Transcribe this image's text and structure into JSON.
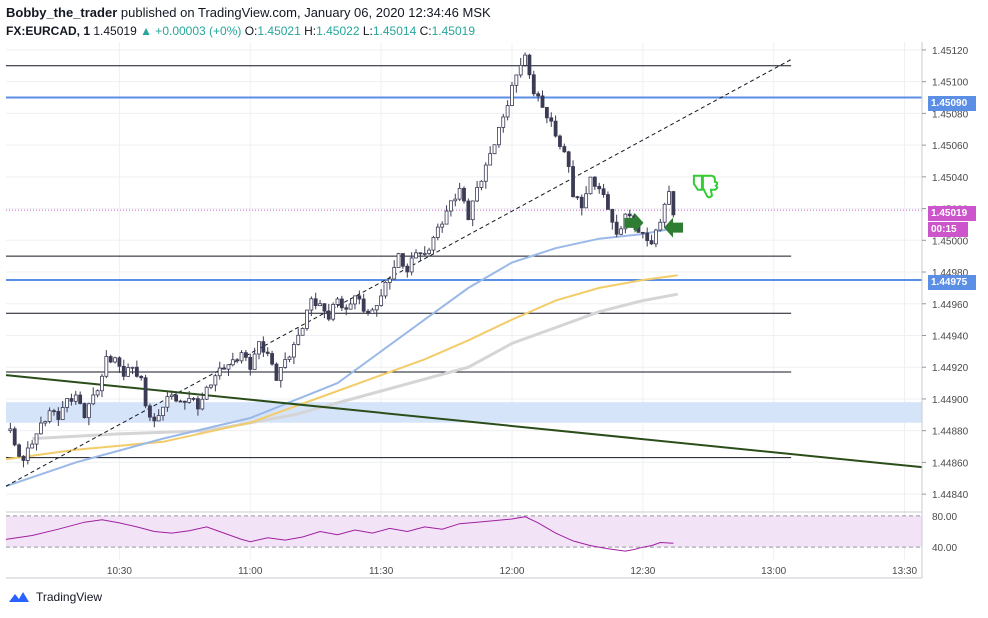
{
  "header": {
    "author": "Bobby_the_trader",
    "published": "published on TradingView.com, January 06, 2020 12:34:46 MSK",
    "symbol": "FX:EURCAD, 1",
    "last": "1.45019",
    "change": "▲ +0.00003 (+0%)",
    "o_label": "O:",
    "o_value": "1.45021",
    "h_label": "H:",
    "h_value": "1.45022",
    "l_label": "L:",
    "l_value": "1.45014",
    "c_label": "C:",
    "c_value": "1.45019"
  },
  "footer": {
    "brand": "TradingView"
  },
  "price_tags": {
    "level_top": "1.45090",
    "last_price": "1.45019",
    "countdown": "00:15",
    "level_bottom": "1.44975"
  },
  "colors": {
    "up": "#26a69a",
    "candle": "#3b3b55",
    "level_blue": "#5b8fe6",
    "ma_blue": "#9ab8e8",
    "ma_orange": "#f3cc6a",
    "ma_gray": "#d5d5d5",
    "trendline": "#2b4d1a",
    "rsi": "#a020a0",
    "last_tag": "#cc55cc",
    "arrow_green": "#2e7d32",
    "thumb": "#33cc33"
  },
  "chart_data": {
    "type": "candlestick",
    "ylim": [
      1.4483,
      1.45125
    ],
    "y_ticks": [
      "1.45120",
      "1.45100",
      "1.45080",
      "1.45060",
      "1.45040",
      "1.45020",
      "1.45000",
      "1.44980",
      "1.44960",
      "1.44940",
      "1.44920",
      "1.44900",
      "1.44880",
      "1.44860",
      "1.44840"
    ],
    "x_ticks": [
      {
        "label": "10:30",
        "minute": 30
      },
      {
        "label": "11:00",
        "minute": 60
      },
      {
        "label": "11:30",
        "minute": 90
      },
      {
        "label": "12:00",
        "minute": 120
      },
      {
        "label": "12:30",
        "minute": 150
      },
      {
        "label": "13:00",
        "minute": 180
      },
      {
        "label": "13:30",
        "minute": 210
      }
    ],
    "x_range_minutes": [
      4,
      214
    ],
    "horizontal_levels": [
      1.4511,
      1.4499,
      1.44954,
      1.44917,
      1.44863
    ],
    "blue_levels": [
      1.4509,
      1.44975
    ],
    "last_price": 1.45019,
    "zone": [
      1.44885,
      1.44898
    ],
    "close_path": [
      [
        5,
        1.4488
      ],
      [
        6,
        1.44868
      ],
      [
        8,
        1.44862
      ],
      [
        10,
        1.44875
      ],
      [
        12,
        1.44885
      ],
      [
        14,
        1.44893
      ],
      [
        16,
        1.44888
      ],
      [
        18,
        1.44897
      ],
      [
        20,
        1.449
      ],
      [
        22,
        1.4489
      ],
      [
        24,
        1.44903
      ],
      [
        26,
        1.44915
      ],
      [
        27,
        1.44928
      ],
      [
        29,
        1.44925
      ],
      [
        31,
        1.44915
      ],
      [
        33,
        1.44918
      ],
      [
        35,
        1.4491
      ],
      [
        36,
        1.44895
      ],
      [
        38,
        1.44885
      ],
      [
        40,
        1.44898
      ],
      [
        42,
        1.44905
      ],
      [
        44,
        1.44897
      ],
      [
        46,
        1.449
      ],
      [
        48,
        1.44893
      ],
      [
        50,
        1.44904
      ],
      [
        52,
        1.44915
      ],
      [
        54,
        1.44922
      ],
      [
        56,
        1.44925
      ],
      [
        58,
        1.4493
      ],
      [
        60,
        1.4492
      ],
      [
        62,
        1.44933
      ],
      [
        64,
        1.44926
      ],
      [
        66,
        1.44913
      ],
      [
        68,
        1.44925
      ],
      [
        70,
        1.44935
      ],
      [
        72,
        1.44948
      ],
      [
        74,
        1.44963
      ],
      [
        76,
        1.44957
      ],
      [
        78,
        1.4495
      ],
      [
        80,
        1.44962
      ],
      [
        82,
        1.44955
      ],
      [
        84,
        1.44968
      ],
      [
        86,
        1.44958
      ],
      [
        88,
        1.44955
      ],
      [
        90,
        1.44965
      ],
      [
        92,
        1.44975
      ],
      [
        94,
        1.44988
      ],
      [
        96,
        1.4498
      ],
      [
        98,
        1.44995
      ],
      [
        100,
        1.44992
      ],
      [
        102,
        1.45003
      ],
      [
        104,
        1.45012
      ],
      [
        106,
        1.45022
      ],
      [
        108,
        1.4503
      ],
      [
        110,
        1.45014
      ],
      [
        112,
        1.45033
      ],
      [
        114,
        1.45048
      ],
      [
        116,
        1.45064
      ],
      [
        118,
        1.45078
      ],
      [
        120,
        1.45095
      ],
      [
        122,
        1.4511
      ],
      [
        123,
        1.45113
      ],
      [
        124,
        1.45103
      ],
      [
        125,
        1.45093
      ],
      [
        127,
        1.45085
      ],
      [
        129,
        1.45075
      ],
      [
        131,
        1.45062
      ],
      [
        133,
        1.45048
      ],
      [
        134,
        1.45028
      ],
      [
        136,
        1.4502
      ],
      [
        138,
        1.45036
      ],
      [
        140,
        1.45032
      ],
      [
        142,
        1.45022
      ],
      [
        144,
        1.45004
      ],
      [
        146,
        1.45018
      ],
      [
        148,
        1.45012
      ],
      [
        149,
        1.45004
      ],
      [
        151,
        1.45
      ],
      [
        152,
        1.44995
      ],
      [
        154,
        1.45012
      ],
      [
        156,
        1.4503
      ],
      [
        157,
        1.45019
      ]
    ],
    "ma_blue": [
      [
        4,
        1.44845
      ],
      [
        20,
        1.4486
      ],
      [
        40,
        1.44875
      ],
      [
        60,
        1.44888
      ],
      [
        80,
        1.4491
      ],
      [
        100,
        1.4495
      ],
      [
        110,
        1.4497
      ],
      [
        120,
        1.44986
      ],
      [
        130,
        1.44995
      ],
      [
        140,
        1.45001
      ],
      [
        150,
        1.45004
      ],
      [
        158,
        1.45008
      ]
    ],
    "ma_orange": [
      [
        4,
        1.44862
      ],
      [
        20,
        1.44868
      ],
      [
        40,
        1.44873
      ],
      [
        60,
        1.44885
      ],
      [
        80,
        1.44905
      ],
      [
        100,
        1.44925
      ],
      [
        110,
        1.44937
      ],
      [
        120,
        1.4495
      ],
      [
        130,
        1.44962
      ],
      [
        140,
        1.4497
      ],
      [
        150,
        1.44975
      ],
      [
        158,
        1.44978
      ]
    ],
    "ma_gray": [
      [
        10,
        1.44875
      ],
      [
        30,
        1.44878
      ],
      [
        50,
        1.4488
      ],
      [
        70,
        1.4489
      ],
      [
        90,
        1.44905
      ],
      [
        110,
        1.4492
      ],
      [
        120,
        1.44935
      ],
      [
        130,
        1.44945
      ],
      [
        140,
        1.44955
      ],
      [
        150,
        1.44962
      ],
      [
        158,
        1.44966
      ]
    ],
    "dashed_trend": [
      [
        4,
        1.44845
      ],
      [
        184,
        1.45114
      ]
    ],
    "support_trend": [
      [
        4,
        1.44915
      ],
      [
        214,
        1.44857
      ]
    ],
    "rsi": {
      "ticks": [
        "80.00",
        "40.00"
      ],
      "band": [
        40,
        80
      ],
      "values": [
        [
          4,
          50
        ],
        [
          10,
          55
        ],
        [
          16,
          63
        ],
        [
          22,
          72
        ],
        [
          26,
          75
        ],
        [
          30,
          71
        ],
        [
          34,
          66
        ],
        [
          38,
          60
        ],
        [
          42,
          58
        ],
        [
          46,
          61
        ],
        [
          50,
          66
        ],
        [
          54,
          58
        ],
        [
          58,
          50
        ],
        [
          60,
          47
        ],
        [
          64,
          52
        ],
        [
          68,
          49
        ],
        [
          72,
          53
        ],
        [
          76,
          60
        ],
        [
          80,
          56
        ],
        [
          84,
          62
        ],
        [
          88,
          58
        ],
        [
          92,
          64
        ],
        [
          96,
          60
        ],
        [
          100,
          66
        ],
        [
          104,
          63
        ],
        [
          108,
          70
        ],
        [
          112,
          72
        ],
        [
          116,
          74
        ],
        [
          120,
          76
        ],
        [
          123,
          79
        ],
        [
          126,
          71
        ],
        [
          130,
          58
        ],
        [
          134,
          48
        ],
        [
          138,
          42
        ],
        [
          142,
          38
        ],
        [
          146,
          35
        ],
        [
          148,
          37
        ],
        [
          150,
          40
        ],
        [
          152,
          42
        ],
        [
          154,
          46
        ],
        [
          157,
          45
        ]
      ]
    }
  }
}
